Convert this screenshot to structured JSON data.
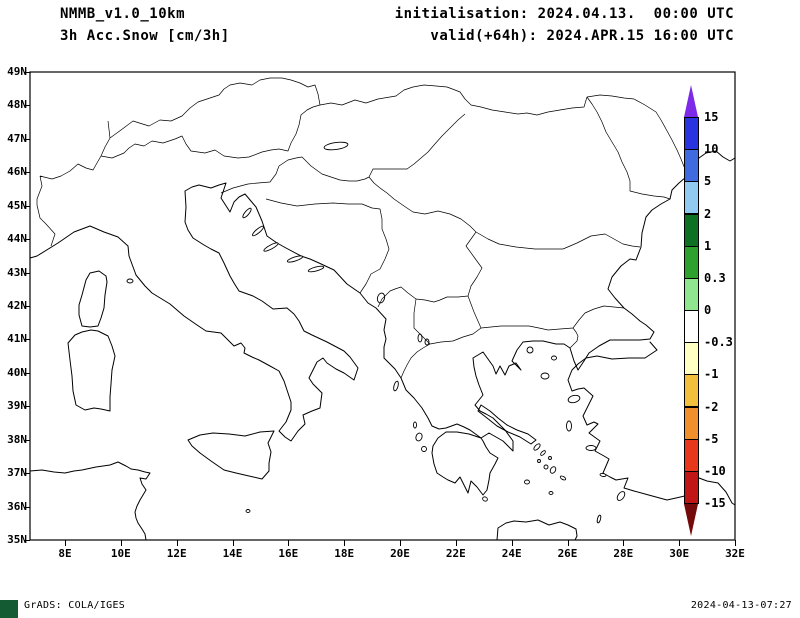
{
  "header": {
    "model": "NMMB_v1.0_10km",
    "field": "3h Acc.Snow [cm/3h]",
    "initialisation": "initialisation: 2024.04.13.  00:00 UTC",
    "valid": "valid(+64h): 2024.APR.15 16:00 UTC"
  },
  "map": {
    "lat_labels": [
      "49N",
      "48N",
      "47N",
      "46N",
      "45N",
      "44N",
      "43N",
      "42N",
      "41N",
      "40N",
      "39N",
      "38N",
      "37N",
      "36N",
      "35N"
    ],
    "lon_labels": [
      "8E",
      "10E",
      "12E",
      "14E",
      "16E",
      "18E",
      "20E",
      "22E",
      "24E",
      "26E",
      "28E",
      "30E",
      "32E"
    ]
  },
  "colorbar": {
    "tick_labels": [
      "15",
      "10",
      "5",
      "2",
      "1",
      "0.3",
      "0",
      "-0.3",
      "-1",
      "-2",
      "-5",
      "-10",
      "-15"
    ],
    "segment_colors": [
      "#2933e0",
      "#3f6ae0",
      "#92c9f0",
      "#0d7022",
      "#2da02d",
      "#8fe68f",
      "#ffffff",
      "#ffffc4",
      "#f2c03c",
      "#f0902c",
      "#e8381c",
      "#c01616"
    ],
    "arrow_top_color": "#7d2ae8",
    "arrow_bottom_color": "#740a0a"
  },
  "footer": {
    "left": "GrADS: COLA/IGES",
    "right": "2024-04-13-07:27"
  }
}
